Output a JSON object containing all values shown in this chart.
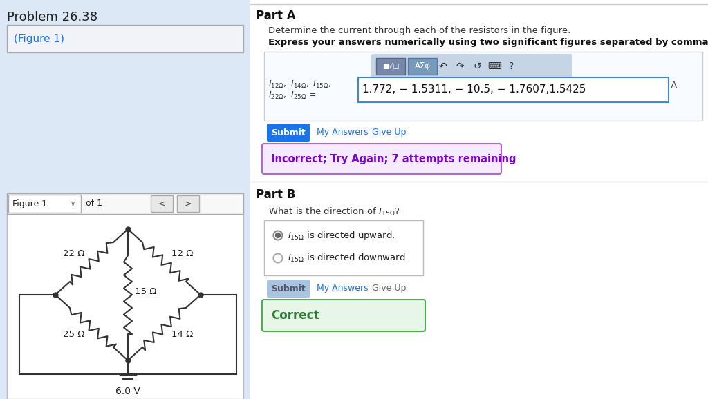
{
  "bg_color": "#f0f4f8",
  "left_panel": {
    "problem_title": "Problem 26.38",
    "figure_link_text": "(Figure 1)",
    "figure_nav_text": "Figure 1",
    "figure_nav_of": "of 1",
    "circuit_resistors": {
      "top_left": "22 Ω",
      "top_right": "12 Ω",
      "center": "15 Ω",
      "bottom_left": "25 Ω",
      "bottom_right": "14 Ω"
    },
    "battery_label": "6.0 V"
  },
  "right_panel": {
    "part_a_title": "Part A",
    "part_a_question": "Determine the current through each of the resistors in the figure.",
    "part_a_bold": "Express your answers numerically using two significant figures separated by commas.",
    "answer_value": "1.772, − 1.5311, − 10.5, − 1.7607,1.5425",
    "submit_btn_text": "Submit",
    "submit_btn_color": "#1a73e8",
    "my_answers_text": "My Answers",
    "give_up_text": "Give Up",
    "incorrect_text": "Incorrect; Try Again; 7 attempts remaining",
    "incorrect_bg": "#f5eaff",
    "incorrect_border": "#b366cc",
    "incorrect_color": "#7a00cc",
    "part_b_title": "Part B",
    "submit_b_btn_color": "#a8c4e0",
    "correct_text": "Correct",
    "correct_bg": "#e8f5e9",
    "correct_border": "#4caf50",
    "correct_color": "#2e7d32"
  }
}
